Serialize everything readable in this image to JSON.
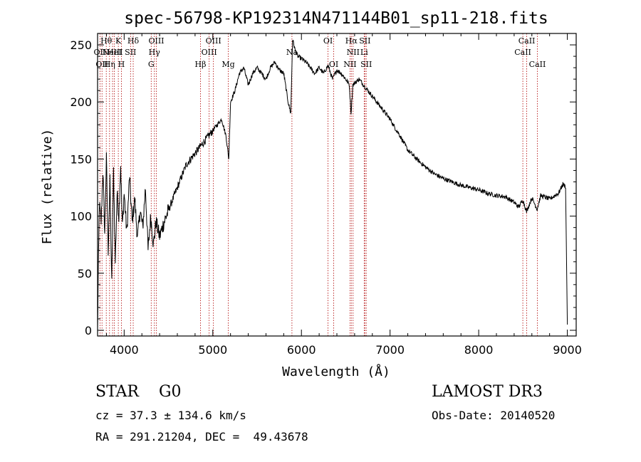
{
  "chart_data": {
    "type": "line",
    "title": "spec-56798-KP192314N471144B01_sp11-218.fits",
    "xlabel": "Wavelength (Å)",
    "ylabel": "Flux (relative)",
    "xlim": [
      3700,
      9100
    ],
    "ylim": [
      -5,
      260
    ],
    "xticks": [
      4000,
      5000,
      6000,
      7000,
      8000,
      9000
    ],
    "yticks": [
      0,
      50,
      100,
      150,
      200,
      250
    ],
    "x_tick_labels": [
      "4000",
      "5000",
      "6000",
      "7000",
      "8000",
      "9000"
    ],
    "y_tick_labels": [
      "0",
      "50",
      "100",
      "150",
      "200",
      "250"
    ],
    "grid": false,
    "series": [
      {
        "name": "spectrum",
        "x": [
          3700,
          3710,
          3720,
          3740,
          3760,
          3780,
          3800,
          3820,
          3840,
          3860,
          3880,
          3900,
          3920,
          3940,
          3960,
          3980,
          4000,
          4030,
          4060,
          4090,
          4120,
          4150,
          4180,
          4210,
          4240,
          4270,
          4300,
          4330,
          4360,
          4400,
          4450,
          4500,
          4550,
          4600,
          4650,
          4700,
          4750,
          4800,
          4850,
          4900,
          4950,
          5000,
          5050,
          5100,
          5150,
          5180,
          5200,
          5250,
          5300,
          5350,
          5400,
          5450,
          5500,
          5550,
          5600,
          5650,
          5700,
          5750,
          5800,
          5850,
          5880,
          5900,
          5930,
          5960,
          6000,
          6050,
          6100,
          6150,
          6200,
          6250,
          6300,
          6350,
          6400,
          6450,
          6500,
          6540,
          6560,
          6580,
          6620,
          6650,
          6700,
          6750,
          6800,
          6850,
          6900,
          6950,
          7000,
          7050,
          7100,
          7150,
          7200,
          7300,
          7400,
          7500,
          7600,
          7700,
          7800,
          7900,
          8000,
          8100,
          8200,
          8300,
          8400,
          8450,
          8500,
          8540,
          8600,
          8660,
          8700,
          8800,
          8900,
          8950,
          8980,
          9000
        ],
        "y": [
          0,
          60,
          110,
          95,
          140,
          85,
          150,
          70,
          130,
          40,
          140,
          60,
          120,
          100,
          145,
          90,
          120,
          85,
          135,
          95,
          115,
          80,
          105,
          90,
          125,
          70,
          100,
          75,
          95,
          82,
          95,
          105,
          115,
          125,
          135,
          145,
          150,
          155,
          160,
          165,
          170,
          175,
          180,
          185,
          170,
          150,
          200,
          210,
          225,
          230,
          215,
          225,
          230,
          225,
          220,
          230,
          235,
          228,
          225,
          200,
          190,
          255,
          245,
          240,
          238,
          235,
          230,
          225,
          230,
          225,
          232,
          220,
          228,
          225,
          220,
          215,
          190,
          215,
          218,
          220,
          215,
          210,
          205,
          200,
          195,
          190,
          185,
          178,
          172,
          165,
          158,
          150,
          143,
          137,
          133,
          130,
          127,
          125,
          123,
          120,
          118,
          117,
          112,
          108,
          114,
          104,
          116,
          106,
          118,
          115,
          120,
          128,
          126,
          5
        ]
      }
    ],
    "line_markers": [
      {
        "wavelength": 3727,
        "label": "OII",
        "row": 2
      },
      {
        "wavelength": 3750,
        "label": "OII",
        "row": 3
      },
      {
        "wavelength": 3798,
        "label": "Hθ",
        "row": 1
      },
      {
        "wavelength": 3835,
        "label": "Hη",
        "row": 3
      },
      {
        "wavelength": 3869,
        "label": "NeIII",
        "row": 2
      },
      {
        "wavelength": 3889,
        "label": "HeI",
        "row": 2
      },
      {
        "wavelength": 3934,
        "label": "K",
        "row": 1
      },
      {
        "wavelength": 3969,
        "label": "H",
        "row": 3
      },
      {
        "wavelength": 4072,
        "label": "SII",
        "row": 2
      },
      {
        "wavelength": 4102,
        "label": "Hδ",
        "row": 1
      },
      {
        "wavelength": 4305,
        "label": "G",
        "row": 3
      },
      {
        "wavelength": 4341,
        "label": "Hγ",
        "row": 2
      },
      {
        "wavelength": 4363,
        "label": "OIII",
        "row": 1
      },
      {
        "wavelength": 4861,
        "label": "Hβ",
        "row": 3
      },
      {
        "wavelength": 4959,
        "label": "OIII",
        "row": 2
      },
      {
        "wavelength": 5007,
        "label": "OIII",
        "row": 1
      },
      {
        "wavelength": 5175,
        "label": "Mg",
        "row": 3
      },
      {
        "wavelength": 5893,
        "label": "Na",
        "row": 2
      },
      {
        "wavelength": 6300,
        "label": "OI",
        "row": 1
      },
      {
        "wavelength": 6364,
        "label": "OI",
        "row": 3
      },
      {
        "wavelength": 6548,
        "label": "NII",
        "row": 3
      },
      {
        "wavelength": 6563,
        "label": "Hα",
        "row": 1
      },
      {
        "wavelength": 6583,
        "label": "NII",
        "row": 2
      },
      {
        "wavelength": 6708,
        "label": "Li",
        "row": 2
      },
      {
        "wavelength": 6716,
        "label": "SII",
        "row": 1
      },
      {
        "wavelength": 6731,
        "label": "SII",
        "row": 3
      },
      {
        "wavelength": 8498,
        "label": "CaII",
        "row": 2
      },
      {
        "wavelength": 8542,
        "label": "CaII",
        "row": 1
      },
      {
        "wavelength": 8662,
        "label": "CaII",
        "row": 3
      }
    ]
  },
  "info": {
    "class_label": "STAR    G0",
    "release": "LAMOST DR3",
    "cz": "cz = 37.3 ± 134.6 km/s",
    "obs_date": "Obs-Date: 20140520",
    "radec": "RA = 291.21204, DEC =  49.43678"
  }
}
